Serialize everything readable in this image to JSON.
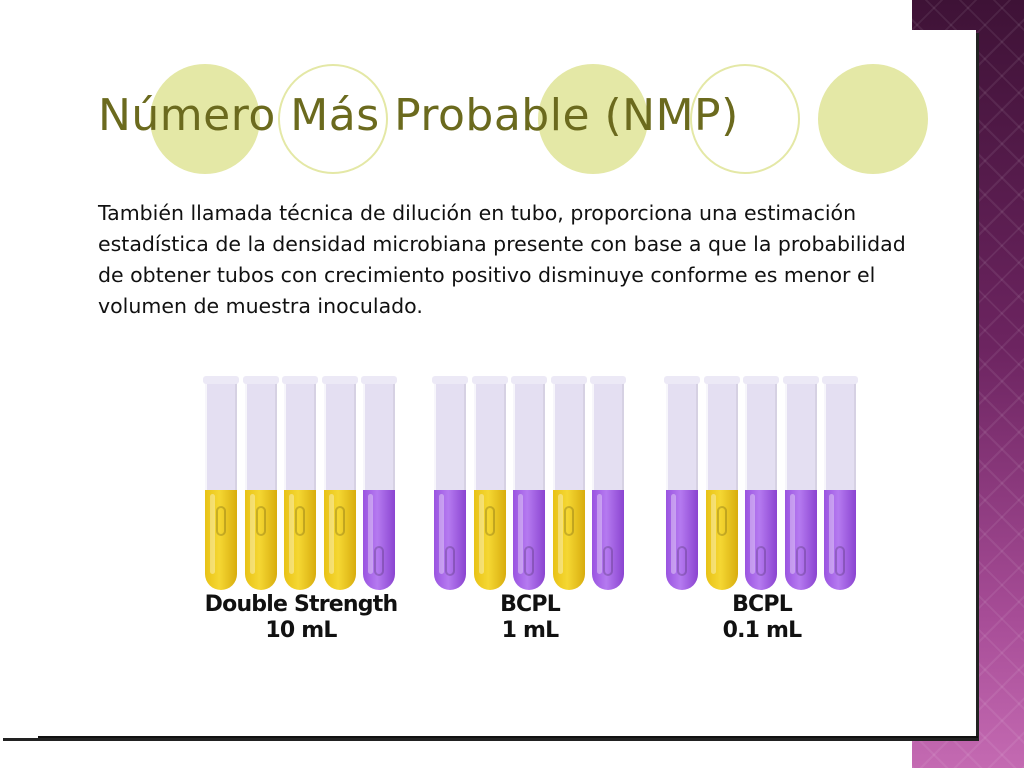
{
  "slide": {
    "title": "Número Más Probable (NMP)",
    "body": "También llamada técnica de dilución en tubo, proporciona una estimación estadística de la densidad microbiana presente con base a que la probabilidad de obtener tubos con crecimiento positivo disminuye conforme es menor el volumen de muestra inoculado."
  },
  "colors": {
    "title": "#6b6a1e",
    "circle": "#e4e8a6",
    "positive_tube": "#f5d733",
    "negative_tube": "#b57af0",
    "side_band": "#6c2460"
  },
  "tube_groups": [
    {
      "line1": "Double Strength",
      "line2": "10 mL",
      "tubes": [
        "yellow",
        "yellow",
        "yellow",
        "yellow",
        "purple"
      ]
    },
    {
      "line1": "BCPL",
      "line2": "1 mL",
      "tubes": [
        "purple",
        "yellow",
        "purple",
        "yellow",
        "purple"
      ]
    },
    {
      "line1": "BCPL",
      "line2": "0.1 mL",
      "tubes": [
        "purple",
        "yellow",
        "purple",
        "purple",
        "purple"
      ]
    }
  ]
}
